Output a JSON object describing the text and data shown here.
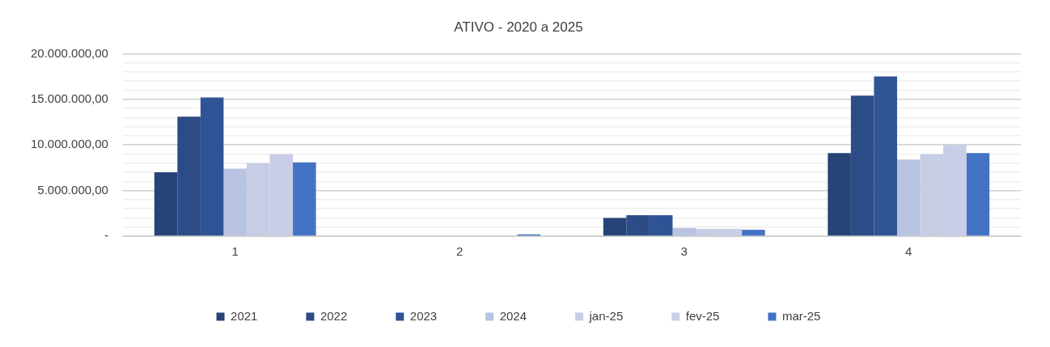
{
  "chart_data": {
    "type": "bar",
    "title": "ATIVO - 2020 a 2025",
    "categories": [
      "1",
      "2",
      "3",
      "4"
    ],
    "series": [
      {
        "name": "2021",
        "color": "#264478",
        "values": [
          7000000.0,
          null,
          2000000.0,
          9100000.0
        ]
      },
      {
        "name": "2022",
        "color": "#2b4c86",
        "values": [
          13100000.0,
          null,
          2300000.0,
          15400000.0
        ]
      },
      {
        "name": "2023",
        "color": "#2f5496",
        "values": [
          15200000.0,
          null,
          2300000.0,
          17500000.0
        ]
      },
      {
        "name": "2024",
        "color": "#b9c3e2",
        "values": [
          7400000.0,
          null,
          900000.0,
          8400000.0
        ]
      },
      {
        "name": "jan-25",
        "color": "#c8cde6",
        "values": [
          8000000.0,
          null,
          800000.0,
          9000000.0
        ]
      },
      {
        "name": "fev-25",
        "color": "#c9cde7",
        "values": [
          9000000.0,
          null,
          800000.0,
          10000000.0
        ]
      },
      {
        "name": "mar-25",
        "color": "#4472c4",
        "values": [
          8100000.0,
          200000.0,
          700000.0,
          9100000.0
        ]
      }
    ],
    "ylim": [
      0,
      20000000
    ],
    "yticks": [
      {
        "value": 0,
        "label": "-"
      },
      {
        "value": 1000000,
        "label": null
      },
      {
        "value": 2000000,
        "label": null
      },
      {
        "value": 3000000,
        "label": null
      },
      {
        "value": 4000000,
        "label": null
      },
      {
        "value": 5000000,
        "label": "5.000.000,00"
      },
      {
        "value": 6000000,
        "label": null
      },
      {
        "value": 7000000,
        "label": null
      },
      {
        "value": 8000000,
        "label": null
      },
      {
        "value": 9000000,
        "label": null
      },
      {
        "value": 10000000,
        "label": "10.000.000,00"
      },
      {
        "value": 11000000,
        "label": null
      },
      {
        "value": 12000000,
        "label": null
      },
      {
        "value": 13000000,
        "label": null
      },
      {
        "value": 14000000,
        "label": null
      },
      {
        "value": 15000000,
        "label": "15.000.000,00"
      },
      {
        "value": 16000000,
        "label": null
      },
      {
        "value": 17000000,
        "label": null
      },
      {
        "value": 18000000,
        "label": null
      },
      {
        "value": 19000000,
        "label": null
      },
      {
        "value": 20000000,
        "label": "20.000.000,00"
      }
    ],
    "grid": "y",
    "legend": "bottom"
  }
}
